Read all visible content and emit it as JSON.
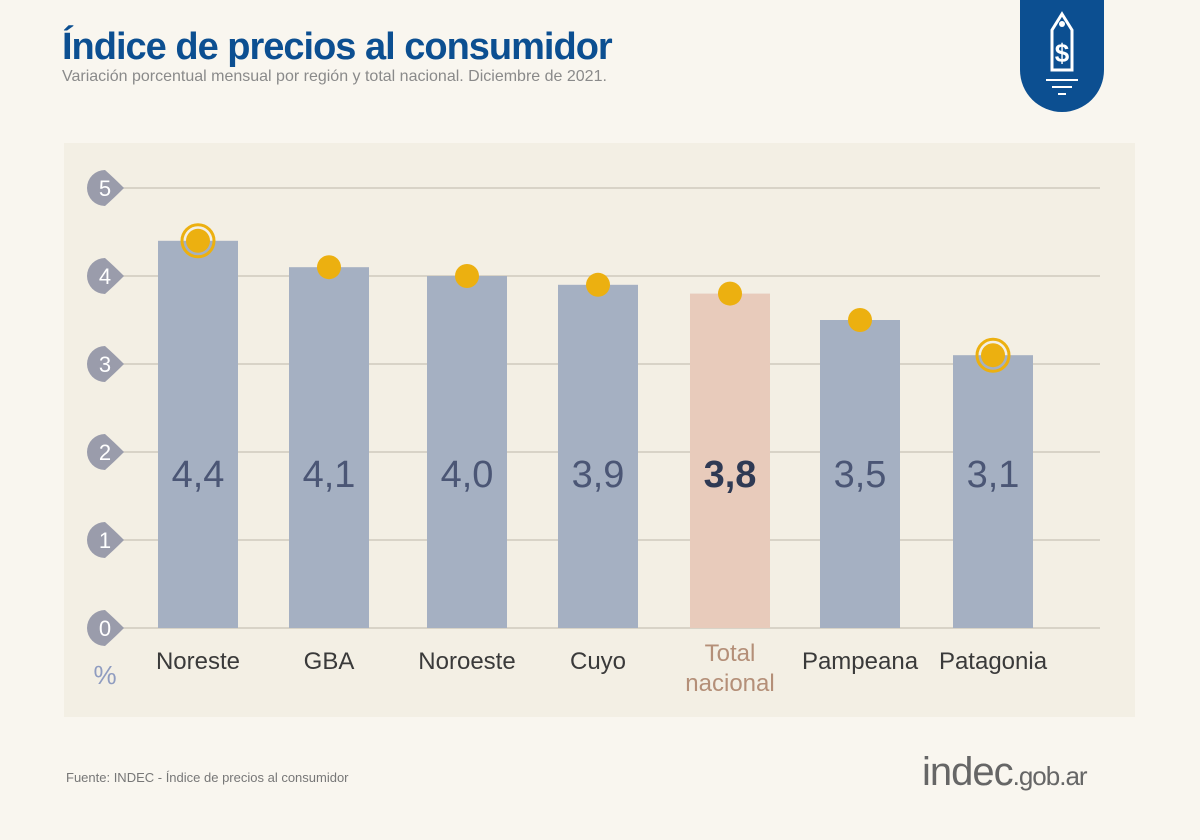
{
  "header": {
    "title": "Índice de precios al consumidor",
    "subtitle": "Variación porcentual mensual por región y total nacional. Diciembre de 2021."
  },
  "footer": {
    "source": "Fuente: INDEC - Índice de precios al consumidor",
    "logo_main": "indec",
    "logo_suffix": ".gob.ar"
  },
  "badge_icon": "price-tag-dollar-icon",
  "chart_data": {
    "type": "bar",
    "title": "Índice de precios al consumidor",
    "ylabel": "%",
    "ylim": [
      0,
      5
    ],
    "yticks": [
      "0",
      "1",
      "2",
      "3",
      "4",
      "5"
    ],
    "grid": true,
    "categories": [
      "Noreste",
      "GBA",
      "Noroeste",
      "Cuyo",
      "Total nacional",
      "Pampeana",
      "Patagonia"
    ],
    "values": [
      4.4,
      4.1,
      4.0,
      3.9,
      3.8,
      3.5,
      3.1
    ],
    "value_labels": [
      "4,4",
      "4,1",
      "4,0",
      "3,9",
      "3,8",
      "3,5",
      "3,1"
    ],
    "highlight": "Total nacional",
    "ringed_markers": [
      "Noreste",
      "Patagonia"
    ],
    "colors": {
      "bar": "#a5b0c2",
      "highlight_bar": "#e8cbbb",
      "marker": "#ecb010",
      "value_text": "#4b5675",
      "highlight_label": "#b48f78",
      "tick_marker": "#9a9cab"
    }
  }
}
